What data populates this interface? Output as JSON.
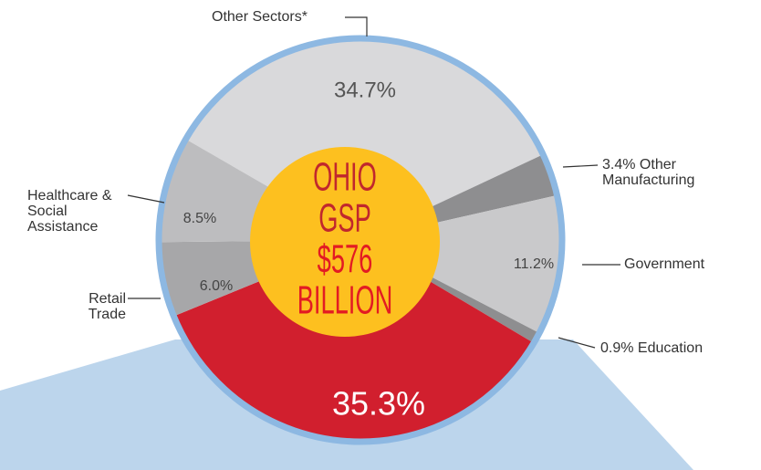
{
  "chart_data": {
    "type": "pie",
    "categories": [
      "Other Sectors*",
      "Other Manufacturing",
      "Government",
      "Education",
      null,
      "Retail Trade",
      "Healthcare & Social Assistance"
    ],
    "values": [
      34.7,
      3.4,
      11.2,
      0.9,
      35.3,
      6.0,
      8.5
    ],
    "value_labels": [
      "34.7%",
      "3.4%",
      "11.2%",
      "0.9%",
      "35.3%",
      "6.0%",
      "8.5%"
    ],
    "colors": [
      "#d9d9db",
      "#8e8e90",
      "#c9c9cb",
      "#8e8e90",
      "#d11f2e",
      "#a7a7a9",
      "#bdbdbf"
    ],
    "center_text": [
      "OHIO",
      "GSP",
      "$576",
      "BILLION"
    ]
  }
}
